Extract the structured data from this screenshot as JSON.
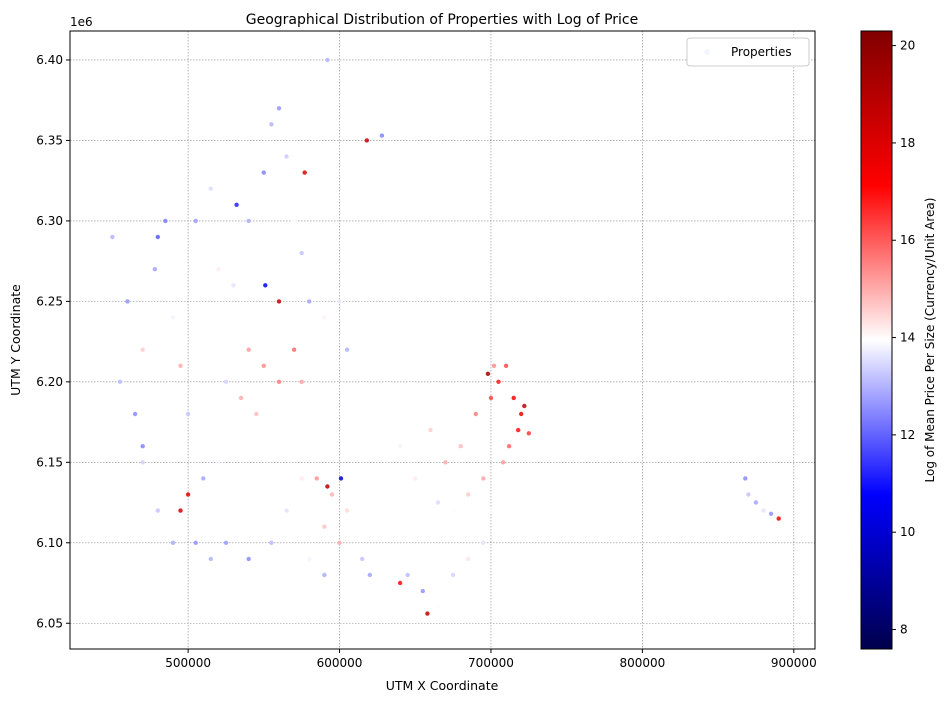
{
  "chart_data": {
    "type": "scatter",
    "title": "Geographical Distribution of Properties with Log of Price",
    "xlabel": "UTM X Coordinate",
    "ylabel": "UTM Y Coordinate",
    "y_offset_label": "1e6",
    "xlim": [
      422000,
      914000
    ],
    "ylim": [
      6.034,
      6.418
    ],
    "x_ticks": [
      500000,
      600000,
      700000,
      800000,
      900000
    ],
    "x_tick_labels": [
      "500000",
      "600000",
      "700000",
      "800000",
      "900000"
    ],
    "y_ticks": [
      6.05,
      6.1,
      6.15,
      6.2,
      6.25,
      6.3,
      6.35,
      6.4
    ],
    "y_tick_labels": [
      "6.05",
      "6.10",
      "6.15",
      "6.20",
      "6.25",
      "6.30",
      "6.35",
      "6.40"
    ],
    "grid": true,
    "legend": {
      "placement": "top-right",
      "entries": [
        "Properties"
      ]
    },
    "colorbar": {
      "label": "Log of Mean Price Per Size (Currency/Unit Area)",
      "range": [
        7.6,
        20.3
      ],
      "ticks": [
        8,
        10,
        12,
        14,
        16,
        18,
        20
      ],
      "tick_labels": [
        "8",
        "10",
        "12",
        "14",
        "16",
        "18",
        "20"
      ],
      "colormap": "seismic"
    },
    "series": [
      {
        "name": "Properties",
        "points": [
          [
            450000,
            6.29,
            13.0
          ],
          [
            460000,
            6.25,
            12.6
          ],
          [
            470000,
            6.22,
            14.6
          ],
          [
            480000,
            6.29,
            11.9
          ],
          [
            485000,
            6.3,
            12.3
          ],
          [
            478000,
            6.27,
            12.8
          ],
          [
            455000,
            6.2,
            13.1
          ],
          [
            465000,
            6.18,
            12.5
          ],
          [
            470000,
            6.15,
            13.4
          ],
          [
            490000,
            6.24,
            13.8
          ],
          [
            495000,
            6.21,
            15.0
          ],
          [
            500000,
            6.18,
            13.2
          ],
          [
            505000,
            6.3,
            12.7
          ],
          [
            515000,
            6.32,
            13.5
          ],
          [
            520000,
            6.27,
            14.2
          ],
          [
            530000,
            6.26,
            13.6
          ],
          [
            540000,
            6.3,
            12.9
          ],
          [
            550000,
            6.33,
            12.4
          ],
          [
            555000,
            6.36,
            13.0
          ],
          [
            560000,
            6.37,
            12.6
          ],
          [
            565000,
            6.34,
            13.3
          ],
          [
            570000,
            6.3,
            14.0
          ],
          [
            575000,
            6.28,
            13.2
          ],
          [
            580000,
            6.25,
            12.8
          ],
          [
            590000,
            6.24,
            14.1
          ],
          [
            600000,
            6.25,
            13.7
          ],
          [
            605000,
            6.22,
            13.0
          ],
          [
            540000,
            6.22,
            15.2
          ],
          [
            550000,
            6.21,
            15.4
          ],
          [
            560000,
            6.2,
            15.6
          ],
          [
            570000,
            6.22,
            15.8
          ],
          [
            575000,
            6.2,
            15.1
          ],
          [
            545000,
            6.18,
            14.8
          ],
          [
            535000,
            6.19,
            15.0
          ],
          [
            525000,
            6.2,
            13.4
          ],
          [
            520000,
            6.15,
            13.8
          ],
          [
            510000,
            6.14,
            12.8
          ],
          [
            500000,
            6.13,
            17.8
          ],
          [
            495000,
            6.12,
            18.2
          ],
          [
            505000,
            6.1,
            12.6
          ],
          [
            490000,
            6.1,
            12.9
          ],
          [
            480000,
            6.12,
            13.2
          ],
          [
            470000,
            6.16,
            12.4
          ],
          [
            515000,
            6.09,
            13.0
          ],
          [
            525000,
            6.1,
            12.7
          ],
          [
            540000,
            6.09,
            12.5
          ],
          [
            555000,
            6.1,
            13.1
          ],
          [
            565000,
            6.12,
            13.6
          ],
          [
            575000,
            6.14,
            14.2
          ],
          [
            585000,
            6.14,
            15.3
          ],
          [
            595000,
            6.13,
            14.9
          ],
          [
            605000,
            6.12,
            14.4
          ],
          [
            600000,
            6.1,
            15.0
          ],
          [
            590000,
            6.11,
            14.7
          ],
          [
            580000,
            6.09,
            13.8
          ],
          [
            590000,
            6.08,
            12.9
          ],
          [
            615000,
            6.09,
            13.2
          ],
          [
            620000,
            6.08,
            12.8
          ],
          [
            618000,
            6.35,
            18.5
          ],
          [
            628000,
            6.353,
            12.4
          ],
          [
            592000,
            6.4,
            13.0
          ],
          [
            645000,
            6.08,
            13.1
          ],
          [
            655000,
            6.07,
            12.6
          ],
          [
            665000,
            6.06,
            14.0
          ],
          [
            640000,
            6.075,
            17.0
          ],
          [
            658000,
            6.056,
            18.6
          ],
          [
            675000,
            6.08,
            13.4
          ],
          [
            685000,
            6.09,
            14.3
          ],
          [
            695000,
            6.1,
            13.6
          ],
          [
            650000,
            6.14,
            14.2
          ],
          [
            640000,
            6.16,
            13.8
          ],
          [
            660000,
            6.17,
            14.6
          ],
          [
            670000,
            6.15,
            15.0
          ],
          [
            680000,
            6.16,
            14.8
          ],
          [
            690000,
            6.18,
            15.6
          ],
          [
            700000,
            6.19,
            16.3
          ],
          [
            705000,
            6.2,
            16.8
          ],
          [
            710000,
            6.21,
            16.2
          ],
          [
            715000,
            6.19,
            17.2
          ],
          [
            720000,
            6.18,
            17.5
          ],
          [
            722000,
            6.185,
            18.8
          ],
          [
            718000,
            6.17,
            16.9
          ],
          [
            725000,
            6.168,
            16.4
          ],
          [
            695000,
            6.14,
            15.1
          ],
          [
            685000,
            6.13,
            14.6
          ],
          [
            675000,
            6.12,
            14.0
          ],
          [
            665000,
            6.125,
            13.5
          ],
          [
            700000,
            6.12,
            13.9
          ],
          [
            708000,
            6.15,
            15.2
          ],
          [
            712000,
            6.16,
            15.9
          ],
          [
            702000,
            6.21,
            15.4
          ],
          [
            698000,
            6.205,
            19.5
          ],
          [
            870000,
            6.13,
            13.2
          ],
          [
            875000,
            6.125,
            12.8
          ],
          [
            880000,
            6.12,
            13.6
          ],
          [
            885000,
            6.118,
            12.6
          ],
          [
            890000,
            6.115,
            17.4
          ],
          [
            868000,
            6.14,
            12.5
          ],
          [
            532000,
            6.31,
            11.2
          ],
          [
            551000,
            6.26,
            10.8
          ],
          [
            601000,
            6.14,
            9.8
          ],
          [
            592000,
            6.135,
            19.0
          ],
          [
            560000,
            6.25,
            18.6
          ],
          [
            577000,
            6.33,
            18.0
          ]
        ]
      }
    ]
  }
}
